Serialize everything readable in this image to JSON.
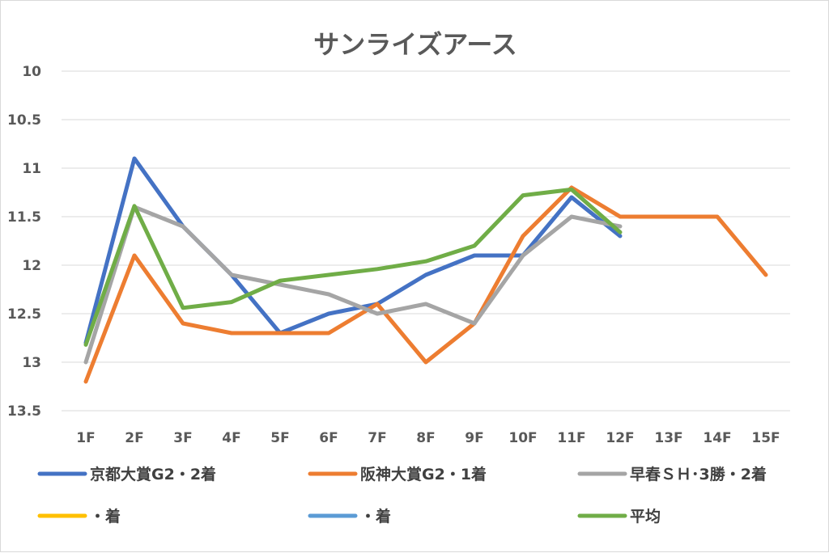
{
  "chart_data": {
    "type": "line",
    "title": "サンライズアース",
    "categories": [
      "1F",
      "2F",
      "3F",
      "4F",
      "5F",
      "6F",
      "7F",
      "8F",
      "9F",
      "10F",
      "11F",
      "12F",
      "13F",
      "14F",
      "15F"
    ],
    "ylim": [
      10,
      13.5
    ],
    "y_inverted": true,
    "yticks": [
      "10",
      "10.5",
      "11",
      "11.5",
      "12",
      "12.5",
      "13",
      "13.5"
    ],
    "grid": true,
    "legend_position": "bottom",
    "series": [
      {
        "name": "京都大賞G2・2着",
        "color": "#4472c4",
        "values": [
          12.8,
          10.9,
          11.6,
          12.1,
          12.7,
          12.5,
          12.4,
          12.1,
          11.9,
          11.9,
          11.3,
          11.7,
          null,
          null,
          null
        ]
      },
      {
        "name": "阪神大賞G2・1着",
        "color": "#ed7d31",
        "values": [
          13.2,
          11.9,
          12.6,
          12.7,
          12.7,
          12.7,
          12.4,
          13.0,
          12.6,
          11.7,
          11.2,
          11.5,
          11.5,
          11.5,
          12.1
        ]
      },
      {
        "name": "早春ＳＨ･3勝・2着",
        "color": "#a5a5a5",
        "values": [
          13.0,
          11.4,
          11.6,
          12.1,
          12.2,
          12.3,
          12.5,
          12.4,
          12.6,
          11.9,
          11.5,
          11.6,
          null,
          null,
          null
        ]
      },
      {
        "name": "・着",
        "color": "#ffc000",
        "values": [
          null,
          null,
          null,
          null,
          null,
          null,
          null,
          null,
          null,
          null,
          null,
          null,
          null,
          null,
          null
        ]
      },
      {
        "name": "・着",
        "color": "#5b9bd5",
        "values": [
          null,
          null,
          null,
          null,
          null,
          null,
          null,
          null,
          null,
          null,
          null,
          null,
          null,
          null,
          null
        ]
      },
      {
        "name": "平均",
        "color": "#70ad47",
        "values": [
          12.82,
          11.39,
          12.44,
          12.38,
          12.16,
          12.1,
          12.04,
          11.96,
          11.8,
          11.28,
          11.22,
          11.66,
          null,
          null,
          null
        ]
      }
    ]
  }
}
